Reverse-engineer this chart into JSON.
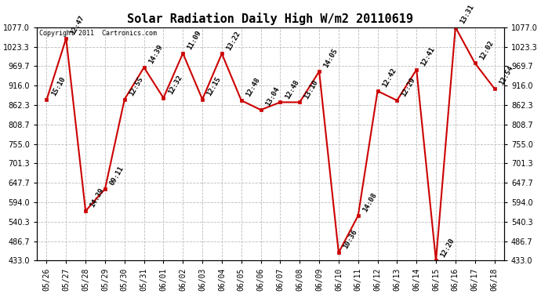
{
  "title": "Solar Radiation Daily High W/m2 20110619",
  "copyright": "Copyright 2011  Cartronics.com",
  "background_color": "#ffffff",
  "plot_bg_color": "#ffffff",
  "line_color": "#cc0000",
  "marker_color": "#cc0000",
  "grid_color": "#bbbbbb",
  "dates": [
    "05/26",
    "05/27",
    "05/28",
    "05/29",
    "05/30",
    "05/31",
    "06/01",
    "06/02",
    "06/03",
    "06/04",
    "06/05",
    "06/06",
    "06/07",
    "06/08",
    "06/09",
    "06/10",
    "06/11",
    "06/12",
    "06/13",
    "06/14",
    "06/15",
    "06/16",
    "06/17",
    "06/18"
  ],
  "values": [
    877.0,
    1046.0,
    570.0,
    631.0,
    878.0,
    966.0,
    882.0,
    1005.0,
    878.0,
    1004.0,
    875.0,
    849.0,
    870.0,
    870.0,
    955.0,
    455.0,
    557.0,
    901.0,
    875.0,
    960.0,
    433.0,
    1077.0,
    978.0,
    908.0
  ],
  "times": [
    "15:10",
    "12:47",
    "14:39",
    "09:11",
    "12:55",
    "14:39",
    "12:32",
    "11:09",
    "12:15",
    "13:22",
    "12:48",
    "13:04",
    "12:48",
    "13:10",
    "14:05",
    "10:36",
    "14:08",
    "12:42",
    "12:29",
    "12:41",
    "12:20",
    "13:31",
    "12:02",
    "12:54"
  ],
  "ylim": [
    433.0,
    1077.0
  ],
  "yticks": [
    433.0,
    486.7,
    540.3,
    594.0,
    647.7,
    701.3,
    755.0,
    808.7,
    862.3,
    916.0,
    969.7,
    1023.3,
    1077.0
  ],
  "title_fontsize": 11,
  "tick_fontsize": 7,
  "label_fontsize": 6.5
}
